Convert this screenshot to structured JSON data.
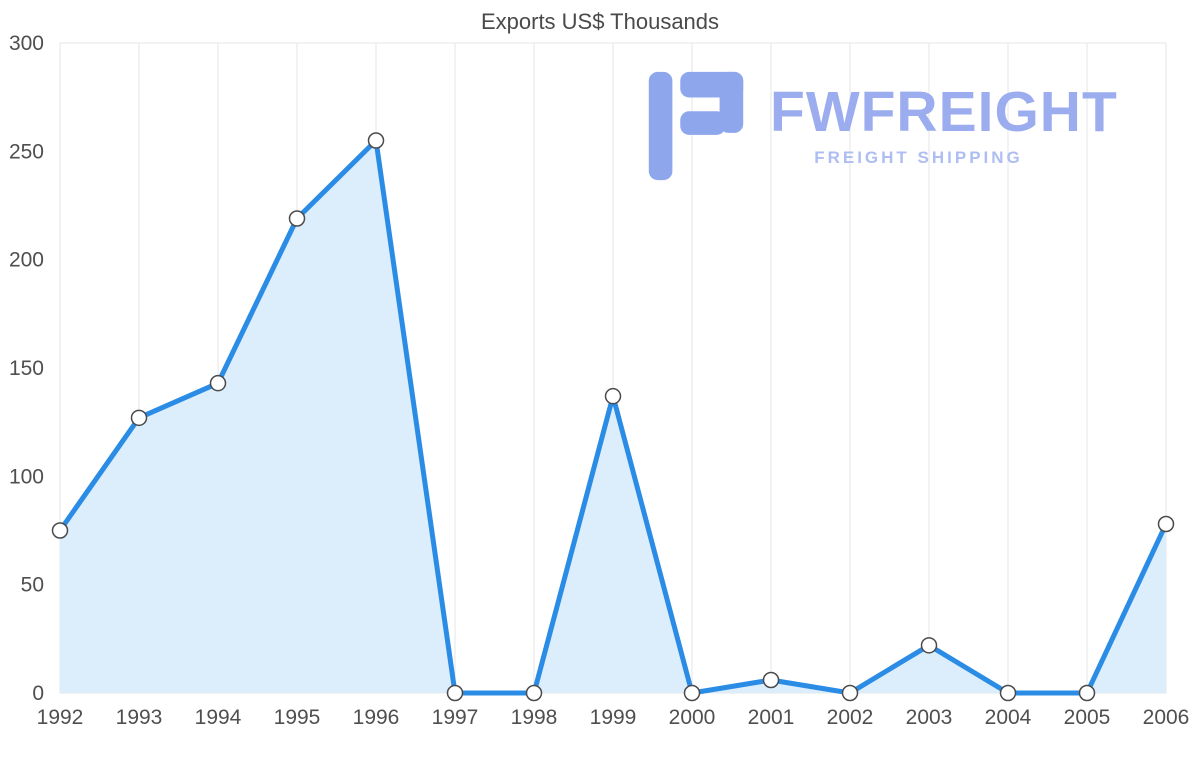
{
  "chart_data": {
    "type": "area",
    "title": "Exports US$ Thousands",
    "categories": [
      "1992",
      "1993",
      "1994",
      "1995",
      "1996",
      "1997",
      "1998",
      "1999",
      "2000",
      "2001",
      "2002",
      "2003",
      "2004",
      "2005",
      "2006"
    ],
    "values": [
      75,
      127,
      143,
      219,
      255,
      0,
      0,
      137,
      0,
      6,
      0,
      22,
      0,
      0,
      78
    ],
    "xlabel": "",
    "ylabel": "",
    "ylim": [
      0,
      300
    ],
    "yticks": [
      0,
      50,
      100,
      150,
      200,
      250,
      300
    ],
    "grid": "vertical-per-category, top and bottom border lines",
    "legend": "none",
    "colors": {
      "line": "#2b8ce6",
      "fill": "#dcedfc",
      "marker_fill": "#ffffff",
      "marker_stroke": "#4a4a4a",
      "grid": "#e6e6e6",
      "axis_text": "#4f4f4f",
      "title_text": "#4a4a4a"
    }
  },
  "watermark": {
    "name": "FWFREIGHT",
    "tagline": "FREIGHT SHIPPING",
    "icon": "fwfreight-logo-icon",
    "name_color": "#9badee",
    "tagline_color": "#aebdf2",
    "icon_color": "#8da6ec"
  }
}
